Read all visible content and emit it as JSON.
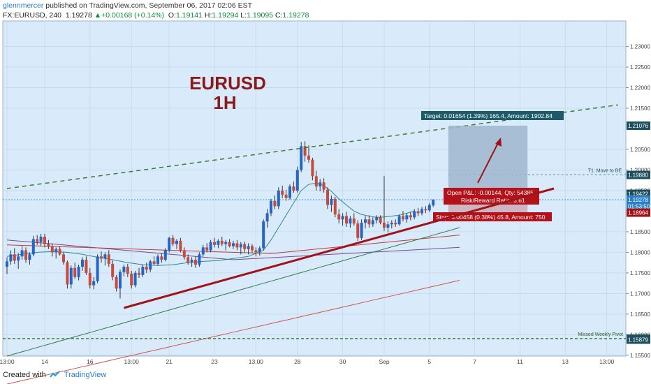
{
  "header": {
    "author": "glennmercer",
    "published": "published on TradingView.com, September 06, 2017 02:06 EST",
    "symbol": "FX:EURUSD, 240",
    "last": "1.19278",
    "change": "+0.00168 (+0.14%)",
    "o_label": "O:",
    "o": "1.19141",
    "h_label": "H:",
    "h": "1.19294",
    "l_label": "L:",
    "l": "1.19095",
    "c_label": "C:",
    "c": "1.19278"
  },
  "footer": {
    "created_with": "Created with",
    "brand": "TradingView"
  },
  "chart_data": {
    "type": "candlestick",
    "title": "EURUSD",
    "subtitle": "1H",
    "y_ticks": [
      "1.23000",
      "1.22500",
      "1.22000",
      "1.21500",
      "1.20500",
      "1.20000",
      "1.19500",
      "1.18500",
      "1.18000",
      "1.17500",
      "1.17000",
      "1.16500",
      "1.16000",
      "1.15500"
    ],
    "y_range": [
      1.1548,
      1.2362
    ],
    "x_ticks": [
      {
        "label": "13:00",
        "i": 0
      },
      {
        "label": "14",
        "i": 10
      },
      {
        "label": "16",
        "i": 22
      },
      {
        "label": "13:00",
        "i": 33
      },
      {
        "label": "21",
        "i": 43
      },
      {
        "label": "23",
        "i": 55
      },
      {
        "label": "13:00",
        "i": 66
      },
      {
        "label": "28",
        "i": 77
      },
      {
        "label": "30",
        "i": 89
      },
      {
        "label": "Sep",
        "i": 100
      },
      {
        "label": "5",
        "i": 112
      },
      {
        "label": "7",
        "i": 124
      },
      {
        "label": "11",
        "i": 136
      },
      {
        "label": "13",
        "i": 148
      },
      {
        "label": "13:00",
        "i": 159
      }
    ],
    "price_tags": [
      {
        "label": "1.21076",
        "value": 1.21076,
        "color": "#1f4e5f"
      },
      {
        "label": "1.19880",
        "value": 1.1988,
        "color": "#1f4e5f"
      },
      {
        "label": "1.19422",
        "value": 1.19422,
        "color": "#1f4e5f"
      },
      {
        "label": "1.19278",
        "value": 1.19278,
        "color": "#2a7fc6"
      },
      {
        "label": "01:53:50",
        "value": 1.1912,
        "color": "#2a7fc6"
      },
      {
        "label": "1.18964",
        "value": 1.18964,
        "color": "#a01319"
      },
      {
        "label": "1.15904",
        "value": 1.15904,
        "color": "#1f4e5f"
      },
      {
        "label": "1.15879",
        "value": 1.15879,
        "color": "#1f4e5f"
      }
    ],
    "candles": [
      {
        "o": 1.1765,
        "h": 1.1788,
        "l": 1.1748,
        "c": 1.1778
      },
      {
        "o": 1.1778,
        "h": 1.1805,
        "l": 1.177,
        "c": 1.1795
      },
      {
        "o": 1.1795,
        "h": 1.181,
        "l": 1.1772,
        "c": 1.178
      },
      {
        "o": 1.178,
        "h": 1.1798,
        "l": 1.176,
        "c": 1.179
      },
      {
        "o": 1.179,
        "h": 1.1815,
        "l": 1.1782,
        "c": 1.1805
      },
      {
        "o": 1.1805,
        "h": 1.1812,
        "l": 1.1775,
        "c": 1.1782
      },
      {
        "o": 1.1782,
        "h": 1.18,
        "l": 1.177,
        "c": 1.1795
      },
      {
        "o": 1.1795,
        "h": 1.184,
        "l": 1.179,
        "c": 1.1832
      },
      {
        "o": 1.1832,
        "h": 1.1842,
        "l": 1.1818,
        "c": 1.1825
      },
      {
        "o": 1.1825,
        "h": 1.1845,
        "l": 1.1815,
        "c": 1.1838
      },
      {
        "o": 1.1838,
        "h": 1.1845,
        "l": 1.1812,
        "c": 1.182
      },
      {
        "o": 1.182,
        "h": 1.183,
        "l": 1.1808,
        "c": 1.1815
      },
      {
        "o": 1.1815,
        "h": 1.1822,
        "l": 1.179,
        "c": 1.18
      },
      {
        "o": 1.18,
        "h": 1.1812,
        "l": 1.1785,
        "c": 1.1808
      },
      {
        "o": 1.1808,
        "h": 1.1815,
        "l": 1.1792,
        "c": 1.1795
      },
      {
        "o": 1.1795,
        "h": 1.18,
        "l": 1.177,
        "c": 1.1776
      },
      {
        "o": 1.1776,
        "h": 1.178,
        "l": 1.1712,
        "c": 1.1722
      },
      {
        "o": 1.1722,
        "h": 1.1768,
        "l": 1.1712,
        "c": 1.1762
      },
      {
        "o": 1.1762,
        "h": 1.1775,
        "l": 1.1735,
        "c": 1.174
      },
      {
        "o": 1.174,
        "h": 1.177,
        "l": 1.1732,
        "c": 1.1765
      },
      {
        "o": 1.1765,
        "h": 1.1788,
        "l": 1.1755,
        "c": 1.1782
      },
      {
        "o": 1.1782,
        "h": 1.179,
        "l": 1.1745,
        "c": 1.175
      },
      {
        "o": 1.175,
        "h": 1.1762,
        "l": 1.1712,
        "c": 1.172
      },
      {
        "o": 1.172,
        "h": 1.174,
        "l": 1.171,
        "c": 1.173
      },
      {
        "o": 1.173,
        "h": 1.1795,
        "l": 1.1725,
        "c": 1.179
      },
      {
        "o": 1.179,
        "h": 1.1802,
        "l": 1.1775,
        "c": 1.1785
      },
      {
        "o": 1.1785,
        "h": 1.18,
        "l": 1.1768,
        "c": 1.1795
      },
      {
        "o": 1.1795,
        "h": 1.1805,
        "l": 1.1765,
        "c": 1.1772
      },
      {
        "o": 1.1772,
        "h": 1.178,
        "l": 1.1732,
        "c": 1.174
      },
      {
        "o": 1.174,
        "h": 1.1745,
        "l": 1.1705,
        "c": 1.1712
      },
      {
        "o": 1.1712,
        "h": 1.1758,
        "l": 1.1688,
        "c": 1.1752
      },
      {
        "o": 1.1752,
        "h": 1.177,
        "l": 1.1742,
        "c": 1.1765
      },
      {
        "o": 1.1765,
        "h": 1.1772,
        "l": 1.174,
        "c": 1.1748
      },
      {
        "o": 1.1748,
        "h": 1.1755,
        "l": 1.1712,
        "c": 1.172
      },
      {
        "o": 1.172,
        "h": 1.1755,
        "l": 1.1715,
        "c": 1.175
      },
      {
        "o": 1.175,
        "h": 1.1762,
        "l": 1.1738,
        "c": 1.1745
      },
      {
        "o": 1.1745,
        "h": 1.177,
        "l": 1.174,
        "c": 1.1765
      },
      {
        "o": 1.1765,
        "h": 1.1775,
        "l": 1.175,
        "c": 1.1758
      },
      {
        "o": 1.1758,
        "h": 1.1782,
        "l": 1.1752,
        "c": 1.1778
      },
      {
        "o": 1.1778,
        "h": 1.179,
        "l": 1.1768,
        "c": 1.1772
      },
      {
        "o": 1.1772,
        "h": 1.1795,
        "l": 1.1768,
        "c": 1.179
      },
      {
        "o": 1.179,
        "h": 1.1798,
        "l": 1.1775,
        "c": 1.1782
      },
      {
        "o": 1.1782,
        "h": 1.181,
        "l": 1.1778,
        "c": 1.1805
      },
      {
        "o": 1.1805,
        "h": 1.1838,
        "l": 1.18,
        "c": 1.1835
      },
      {
        "o": 1.1835,
        "h": 1.1842,
        "l": 1.1815,
        "c": 1.182
      },
      {
        "o": 1.182,
        "h": 1.1832,
        "l": 1.1808,
        "c": 1.1828
      },
      {
        "o": 1.1828,
        "h": 1.1835,
        "l": 1.18,
        "c": 1.1805
      },
      {
        "o": 1.1805,
        "h": 1.1812,
        "l": 1.1782,
        "c": 1.1788
      },
      {
        "o": 1.1788,
        "h": 1.1795,
        "l": 1.177,
        "c": 1.1775
      },
      {
        "o": 1.1775,
        "h": 1.1788,
        "l": 1.1765,
        "c": 1.1782
      },
      {
        "o": 1.1782,
        "h": 1.179,
        "l": 1.1762,
        "c": 1.177
      },
      {
        "o": 1.177,
        "h": 1.18,
        "l": 1.1765,
        "c": 1.1795
      },
      {
        "o": 1.1795,
        "h": 1.1818,
        "l": 1.179,
        "c": 1.1812
      },
      {
        "o": 1.1812,
        "h": 1.1822,
        "l": 1.18,
        "c": 1.1805
      },
      {
        "o": 1.1805,
        "h": 1.183,
        "l": 1.18,
        "c": 1.1825
      },
      {
        "o": 1.1825,
        "h": 1.1835,
        "l": 1.1812,
        "c": 1.1818
      },
      {
        "o": 1.1818,
        "h": 1.1832,
        "l": 1.181,
        "c": 1.1828
      },
      {
        "o": 1.1828,
        "h": 1.1838,
        "l": 1.1815,
        "c": 1.182
      },
      {
        "o": 1.182,
        "h": 1.183,
        "l": 1.1805,
        "c": 1.1825
      },
      {
        "o": 1.1825,
        "h": 1.1832,
        "l": 1.1812,
        "c": 1.1815
      },
      {
        "o": 1.1815,
        "h": 1.1828,
        "l": 1.1808,
        "c": 1.1822
      },
      {
        "o": 1.1822,
        "h": 1.183,
        "l": 1.1805,
        "c": 1.1812
      },
      {
        "o": 1.1812,
        "h": 1.1825,
        "l": 1.1795,
        "c": 1.182
      },
      {
        "o": 1.182,
        "h": 1.1826,
        "l": 1.18,
        "c": 1.1808
      },
      {
        "o": 1.1808,
        "h": 1.1822,
        "l": 1.1795,
        "c": 1.1815
      },
      {
        "o": 1.1815,
        "h": 1.182,
        "l": 1.1798,
        "c": 1.1805
      },
      {
        "o": 1.1805,
        "h": 1.1812,
        "l": 1.179,
        "c": 1.18
      },
      {
        "o": 1.18,
        "h": 1.1815,
        "l": 1.1792,
        "c": 1.181
      },
      {
        "o": 1.181,
        "h": 1.188,
        "l": 1.1805,
        "c": 1.1875
      },
      {
        "o": 1.1875,
        "h": 1.1905,
        "l": 1.186,
        "c": 1.1895
      },
      {
        "o": 1.1895,
        "h": 1.193,
        "l": 1.1888,
        "c": 1.1925
      },
      {
        "o": 1.1925,
        "h": 1.1938,
        "l": 1.1905,
        "c": 1.1912
      },
      {
        "o": 1.1912,
        "h": 1.1958,
        "l": 1.1905,
        "c": 1.195
      },
      {
        "o": 1.195,
        "h": 1.1962,
        "l": 1.1932,
        "c": 1.194
      },
      {
        "o": 1.194,
        "h": 1.1952,
        "l": 1.1925,
        "c": 1.1932
      },
      {
        "o": 1.1932,
        "h": 1.1965,
        "l": 1.1928,
        "c": 1.196
      },
      {
        "o": 1.196,
        "h": 1.1972,
        "l": 1.1945,
        "c": 1.195
      },
      {
        "o": 1.195,
        "h": 1.2008,
        "l": 1.1945,
        "c": 1.2
      },
      {
        "o": 1.2,
        "h": 1.2068,
        "l": 1.1995,
        "c": 1.2058
      },
      {
        "o": 1.2058,
        "h": 1.207,
        "l": 1.202,
        "c": 1.2035
      },
      {
        "o": 1.2035,
        "h": 1.206,
        "l": 1.2018,
        "c": 1.2025
      },
      {
        "o": 1.2025,
        "h": 1.203,
        "l": 1.1975,
        "c": 1.1985
      },
      {
        "o": 1.1985,
        "h": 1.1998,
        "l": 1.195,
        "c": 1.196
      },
      {
        "o": 1.196,
        "h": 1.1978,
        "l": 1.1948,
        "c": 1.197
      },
      {
        "o": 1.197,
        "h": 1.198,
        "l": 1.1945,
        "c": 1.1952
      },
      {
        "o": 1.1952,
        "h": 1.1958,
        "l": 1.1905,
        "c": 1.1915
      },
      {
        "o": 1.1915,
        "h": 1.1938,
        "l": 1.1898,
        "c": 1.193
      },
      {
        "o": 1.193,
        "h": 1.1935,
        "l": 1.1885,
        "c": 1.1892
      },
      {
        "o": 1.1892,
        "h": 1.1905,
        "l": 1.187,
        "c": 1.188
      },
      {
        "o": 1.188,
        "h": 1.1895,
        "l": 1.1865,
        "c": 1.1888
      },
      {
        "o": 1.1888,
        "h": 1.1898,
        "l": 1.1862,
        "c": 1.187
      },
      {
        "o": 1.187,
        "h": 1.1888,
        "l": 1.186,
        "c": 1.1882
      },
      {
        "o": 1.1882,
        "h": 1.1895,
        "l": 1.1865,
        "c": 1.187
      },
      {
        "o": 1.187,
        "h": 1.1878,
        "l": 1.1828,
        "c": 1.1835
      },
      {
        "o": 1.1835,
        "h": 1.188,
        "l": 1.183,
        "c": 1.1872
      },
      {
        "o": 1.1872,
        "h": 1.1888,
        "l": 1.1858,
        "c": 1.188
      },
      {
        "o": 1.188,
        "h": 1.189,
        "l": 1.186,
        "c": 1.1868
      },
      {
        "o": 1.1868,
        "h": 1.1885,
        "l": 1.1862,
        "c": 1.1878
      },
      {
        "o": 1.1878,
        "h": 1.189,
        "l": 1.187,
        "c": 1.1885
      },
      {
        "o": 1.1885,
        "h": 1.189,
        "l": 1.1868,
        "c": 1.1872
      },
      {
        "o": 1.1872,
        "h": 1.1985,
        "l": 1.1852,
        "c": 1.186
      },
      {
        "o": 1.186,
        "h": 1.1875,
        "l": 1.1848,
        "c": 1.1868
      },
      {
        "o": 1.1868,
        "h": 1.1878,
        "l": 1.1858,
        "c": 1.1872
      },
      {
        "o": 1.1872,
        "h": 1.188,
        "l": 1.1862,
        "c": 1.1868
      },
      {
        "o": 1.1868,
        "h": 1.1892,
        "l": 1.1865,
        "c": 1.1888
      },
      {
        "o": 1.1888,
        "h": 1.19,
        "l": 1.1875,
        "c": 1.188
      },
      {
        "o": 1.188,
        "h": 1.1895,
        "l": 1.1872,
        "c": 1.189
      },
      {
        "o": 1.189,
        "h": 1.1898,
        "l": 1.1878,
        "c": 1.1885
      },
      {
        "o": 1.1885,
        "h": 1.1905,
        "l": 1.188,
        "c": 1.19
      },
      {
        "o": 1.19,
        "h": 1.1908,
        "l": 1.1888,
        "c": 1.1895
      },
      {
        "o": 1.1895,
        "h": 1.191,
        "l": 1.189,
        "c": 1.1905
      },
      {
        "o": 1.1905,
        "h": 1.1912,
        "l": 1.1895,
        "c": 1.1902
      },
      {
        "o": 1.1902,
        "h": 1.192,
        "l": 1.1898,
        "c": 1.1915
      },
      {
        "o": 1.1914,
        "h": 1.1929,
        "l": 1.191,
        "c": 1.1928
      }
    ],
    "ma_fast": [
      1.179,
      1.1795,
      1.18,
      1.1802,
      1.18,
      1.1795,
      1.1788,
      1.1782,
      1.1775,
      1.177,
      1.1768,
      1.177,
      1.1775,
      1.1778,
      1.178,
      1.1785,
      1.179,
      1.1805,
      1.183,
      1.186,
      1.189,
      1.192,
      1.195,
      1.1965,
      1.1968,
      1.1962,
      1.1948,
      1.193,
      1.1915,
      1.19,
      1.1892,
      1.1888,
      1.1885,
      1.1886,
      1.1888,
      1.189,
      1.1895,
      1.19
    ],
    "ma_fast_x": [
      0,
      4,
      8,
      12,
      16,
      20,
      24,
      28,
      32,
      36,
      40,
      44,
      48,
      52,
      56,
      60,
      64,
      68,
      70,
      72,
      74,
      76,
      78,
      80,
      82,
      84,
      86,
      88,
      90,
      92,
      94,
      96,
      98,
      100,
      102,
      104,
      106,
      108
    ],
    "levels": {
      "trend_up_start": {
        "i": 31,
        "v": 1.1665
      },
      "trend_up_end": {
        "i": 145,
        "v": 1.1955
      },
      "channel_start": {
        "i": 0,
        "v": 1.1955
      },
      "channel_end": {
        "i": 162,
        "v": 1.2158
      },
      "pivot": 1.15904,
      "tp_top": 1.21076,
      "entry": 1.19422,
      "stop": 1.18964,
      "tp_left_i": 117,
      "tp_right_i": 138,
      "t1": 1.1988
    },
    "annotations": {
      "target": "Target: 0.01654 (1.39%) 165.4, Amount: 1902.84",
      "open_pl": "Open P&L: -0.00144, Qty: 54385",
      "rr": "Risk/Reward Ratio: 3.61",
      "stop": "Stop: 0.00458 (0.38%) 45.8, Amount: 750",
      "t1": "T1:  Move to BE",
      "pivot": "Missed Weekly Pivot"
    }
  }
}
